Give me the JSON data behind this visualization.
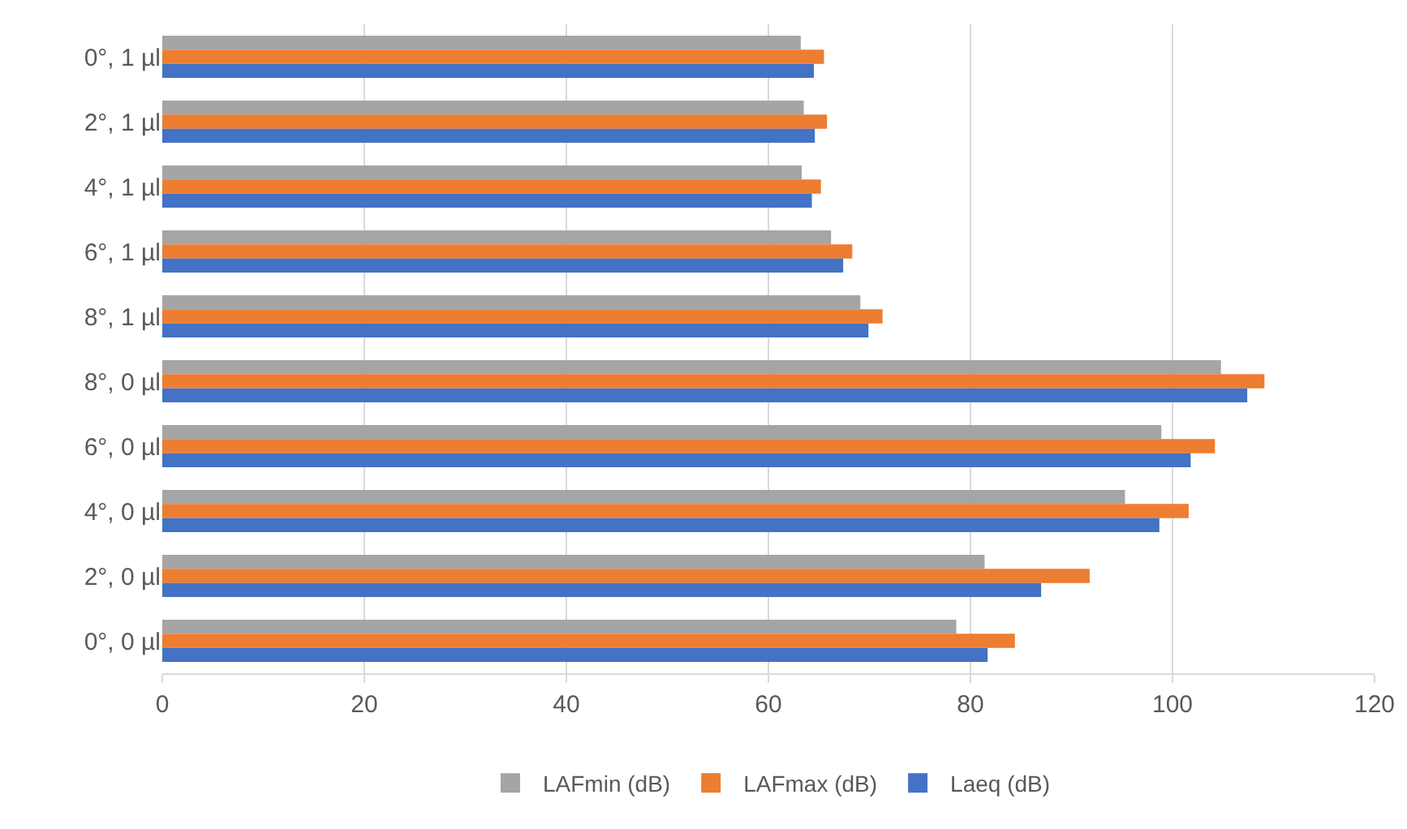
{
  "chart_data": {
    "type": "bar",
    "orientation": "horizontal",
    "categories": [
      "0°, 1 µl",
      "2°, 1 µl",
      "4°, 1 µl",
      "6°, 1 µl",
      "8°, 1 µl",
      "8°, 0 µl",
      "6°, 0 µl",
      "4°, 0 µl",
      "2°, 0 µl",
      "0°, 0 µl"
    ],
    "series": [
      {
        "name": "LAFmin (dB)",
        "color": "#a5a5a5",
        "values": [
          63.2,
          63.5,
          63.3,
          66.2,
          69.1,
          104.8,
          98.9,
          95.3,
          81.4,
          78.6
        ]
      },
      {
        "name": "LAFmax (dB)",
        "color": "#ed7d31",
        "values": [
          65.5,
          65.8,
          65.2,
          68.3,
          71.3,
          109.1,
          104.2,
          101.6,
          91.8,
          84.4
        ]
      },
      {
        "name": "Laeq (dB)",
        "color": "#4472c4",
        "values": [
          64.5,
          64.6,
          64.3,
          67.4,
          69.9,
          107.4,
          101.8,
          98.7,
          87.0,
          81.7
        ]
      }
    ],
    "xlim": [
      0,
      120
    ],
    "xticks": [
      0,
      20,
      40,
      60,
      80,
      100,
      120
    ],
    "grid": "x",
    "legend": "bottom"
  }
}
